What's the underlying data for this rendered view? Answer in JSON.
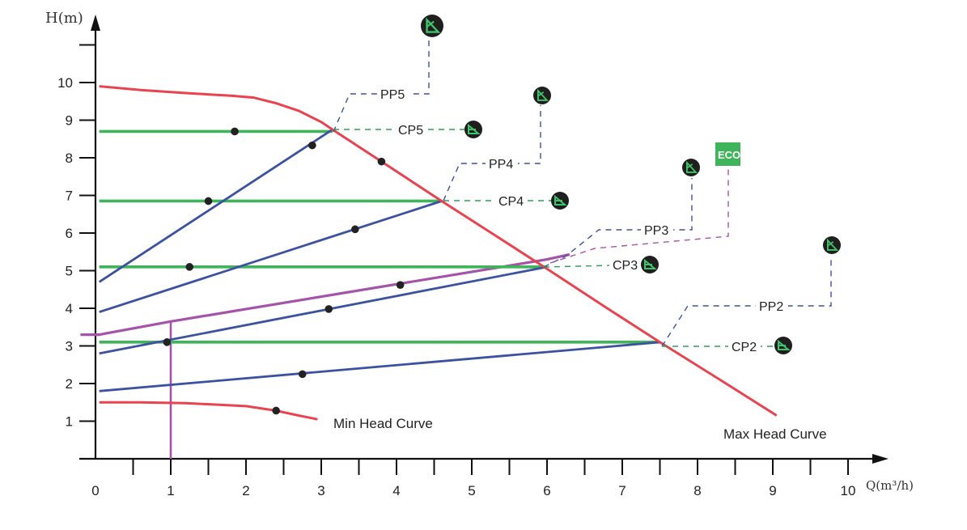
{
  "chart_data": {
    "type": "line",
    "xlabel": "Q(m³/h)",
    "ylabel": "H(m)",
    "xlim": [
      0,
      10
    ],
    "ylim": [
      0,
      11
    ],
    "x_ticks": [
      "0",
      "1",
      "2",
      "3",
      "4",
      "5",
      "6",
      "7",
      "8",
      "9",
      "10"
    ],
    "y_ticks": [
      "1",
      "2",
      "3",
      "4",
      "5",
      "6",
      "7",
      "8",
      "9",
      "10"
    ],
    "grid": false,
    "colors": {
      "max_curve": "#e8434f",
      "constant_pressure": "#3fb45a",
      "proportional_pressure": "#3c52a0",
      "eco": "#a553a8",
      "leader": "#3c52a0",
      "cp_leader": "#2e9e56",
      "icon_fill": "#1f1f1f",
      "icon_green": "#3fc46a",
      "eco_badge": "#3fb45a"
    },
    "max_head_curve": {
      "label": "Max Head Curve",
      "points": [
        [
          0.05,
          9.9
        ],
        [
          0.6,
          9.8
        ],
        [
          1.2,
          9.72
        ],
        [
          1.8,
          9.65
        ],
        [
          2.1,
          9.6
        ],
        [
          2.4,
          9.45
        ],
        [
          2.7,
          9.25
        ],
        [
          3.0,
          8.95
        ],
        [
          3.15,
          8.75
        ],
        [
          3.8,
          7.9
        ],
        [
          4.6,
          6.85
        ],
        [
          5.3,
          5.95
        ],
        [
          6.0,
          5.05
        ],
        [
          6.8,
          4.0
        ],
        [
          7.5,
          3.1
        ],
        [
          8.3,
          2.1
        ],
        [
          9.05,
          1.15
        ]
      ],
      "markers": [
        [
          3.8,
          7.9
        ]
      ]
    },
    "min_head_curve": {
      "label": "Min Head Curve",
      "points": [
        [
          0.05,
          1.5
        ],
        [
          0.6,
          1.5
        ],
        [
          1.2,
          1.48
        ],
        [
          2.0,
          1.4
        ],
        [
          2.4,
          1.28
        ],
        [
          2.7,
          1.15
        ],
        [
          2.95,
          1.05
        ]
      ],
      "markers": [
        [
          2.4,
          1.28
        ]
      ]
    },
    "constant_pressure": [
      {
        "name": "CP5",
        "x": [
          0.05,
          3.15
        ],
        "y": 8.7,
        "markers": [
          [
            1.85,
            8.7
          ]
        ]
      },
      {
        "name": "CP4",
        "x": [
          0.05,
          4.6
        ],
        "y": 6.85,
        "markers": [
          [
            1.5,
            6.85
          ]
        ]
      },
      {
        "name": "CP3",
        "x": [
          0.05,
          6.0
        ],
        "y": 5.1,
        "markers": [
          [
            1.25,
            5.1
          ]
        ]
      },
      {
        "name": "CP2",
        "x": [
          0.05,
          7.5
        ],
        "y": 3.1,
        "markers": [
          [
            0.95,
            3.1
          ]
        ]
      }
    ],
    "proportional_pressure": [
      {
        "name": "PP5",
        "points": [
          [
            0.05,
            4.7
          ],
          [
            3.15,
            8.75
          ]
        ],
        "markers": [
          [
            2.88,
            8.33
          ]
        ]
      },
      {
        "name": "PP4",
        "points": [
          [
            0.05,
            3.9
          ],
          [
            4.6,
            6.85
          ]
        ],
        "markers": [
          [
            3.45,
            6.1
          ]
        ]
      },
      {
        "name": "PP3",
        "points": [
          [
            0.05,
            2.8
          ],
          [
            6.0,
            5.1
          ]
        ],
        "markers": [
          [
            3.1,
            3.98
          ]
        ]
      },
      {
        "name": "PP2",
        "points": [
          [
            0.05,
            1.8
          ],
          [
            7.5,
            3.1
          ]
        ],
        "markers": [
          [
            2.75,
            2.25
          ]
        ]
      }
    ],
    "eco": {
      "label": "ECO",
      "points": [
        [
          -0.2,
          3.3
        ],
        [
          0.05,
          3.3
        ],
        [
          1.0,
          3.65
        ],
        [
          6.0,
          5.3
        ],
        [
          6.3,
          5.43
        ]
      ],
      "markers": [
        [
          4.05,
          4.62
        ]
      ],
      "vertical": {
        "x": 1.0,
        "y": [
          0,
          3.65
        ]
      }
    },
    "annotations": [
      {
        "label": "PP5",
        "kind": "pp"
      },
      {
        "label": "CP5",
        "kind": "cp"
      },
      {
        "label": "PP4",
        "kind": "pp"
      },
      {
        "label": "CP4",
        "kind": "cp"
      },
      {
        "label": "PP3",
        "kind": "pp"
      },
      {
        "label": "CP3",
        "kind": "cp"
      },
      {
        "label": "PP2",
        "kind": "pp"
      },
      {
        "label": "CP2",
        "kind": "cp"
      }
    ]
  }
}
